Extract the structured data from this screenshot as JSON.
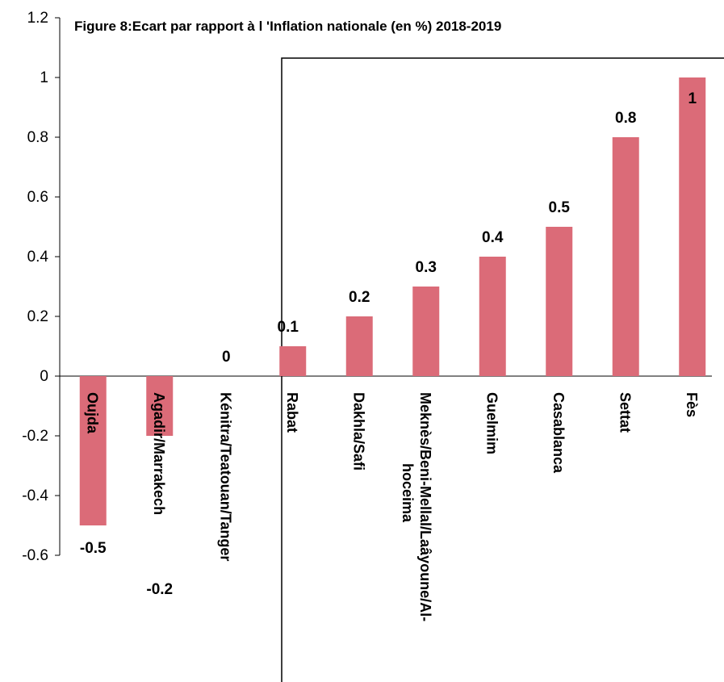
{
  "chart_data": {
    "type": "bar",
    "title": "Figure 8:Ecart par rapport à l 'Inflation nationale  (en %) 2018-2019",
    "xlabel": "",
    "ylabel": "",
    "ylim": [
      -0.6,
      1.2
    ],
    "yticks": [
      "1.2",
      "1",
      "0.8",
      "0.6",
      "0.4",
      "0.2",
      "0",
      "-0.2",
      "-0.4",
      "-0.6"
    ],
    "grid": false,
    "bar_color": "#db6b78",
    "categories": [
      "Oujda",
      "Agadir/Marrakech",
      "Kénitra/Teatouan/Tanger",
      "Rabat",
      "Dakhla/Safi",
      "Meknès/Beni-Mellal/Laâyoune/Al-hoceima",
      "Guelmim",
      "Casablanca",
      "Settat",
      "Fès"
    ],
    "values": [
      -0.5,
      -0.2,
      0,
      0.1,
      0.2,
      0.3,
      0.4,
      0.5,
      0.8,
      1
    ],
    "data_labels": [
      "-0.5",
      "-0.2",
      "0",
      "0.1",
      "0.2",
      "0.3",
      "0.4",
      "0.5",
      "0.8",
      "1"
    ]
  }
}
